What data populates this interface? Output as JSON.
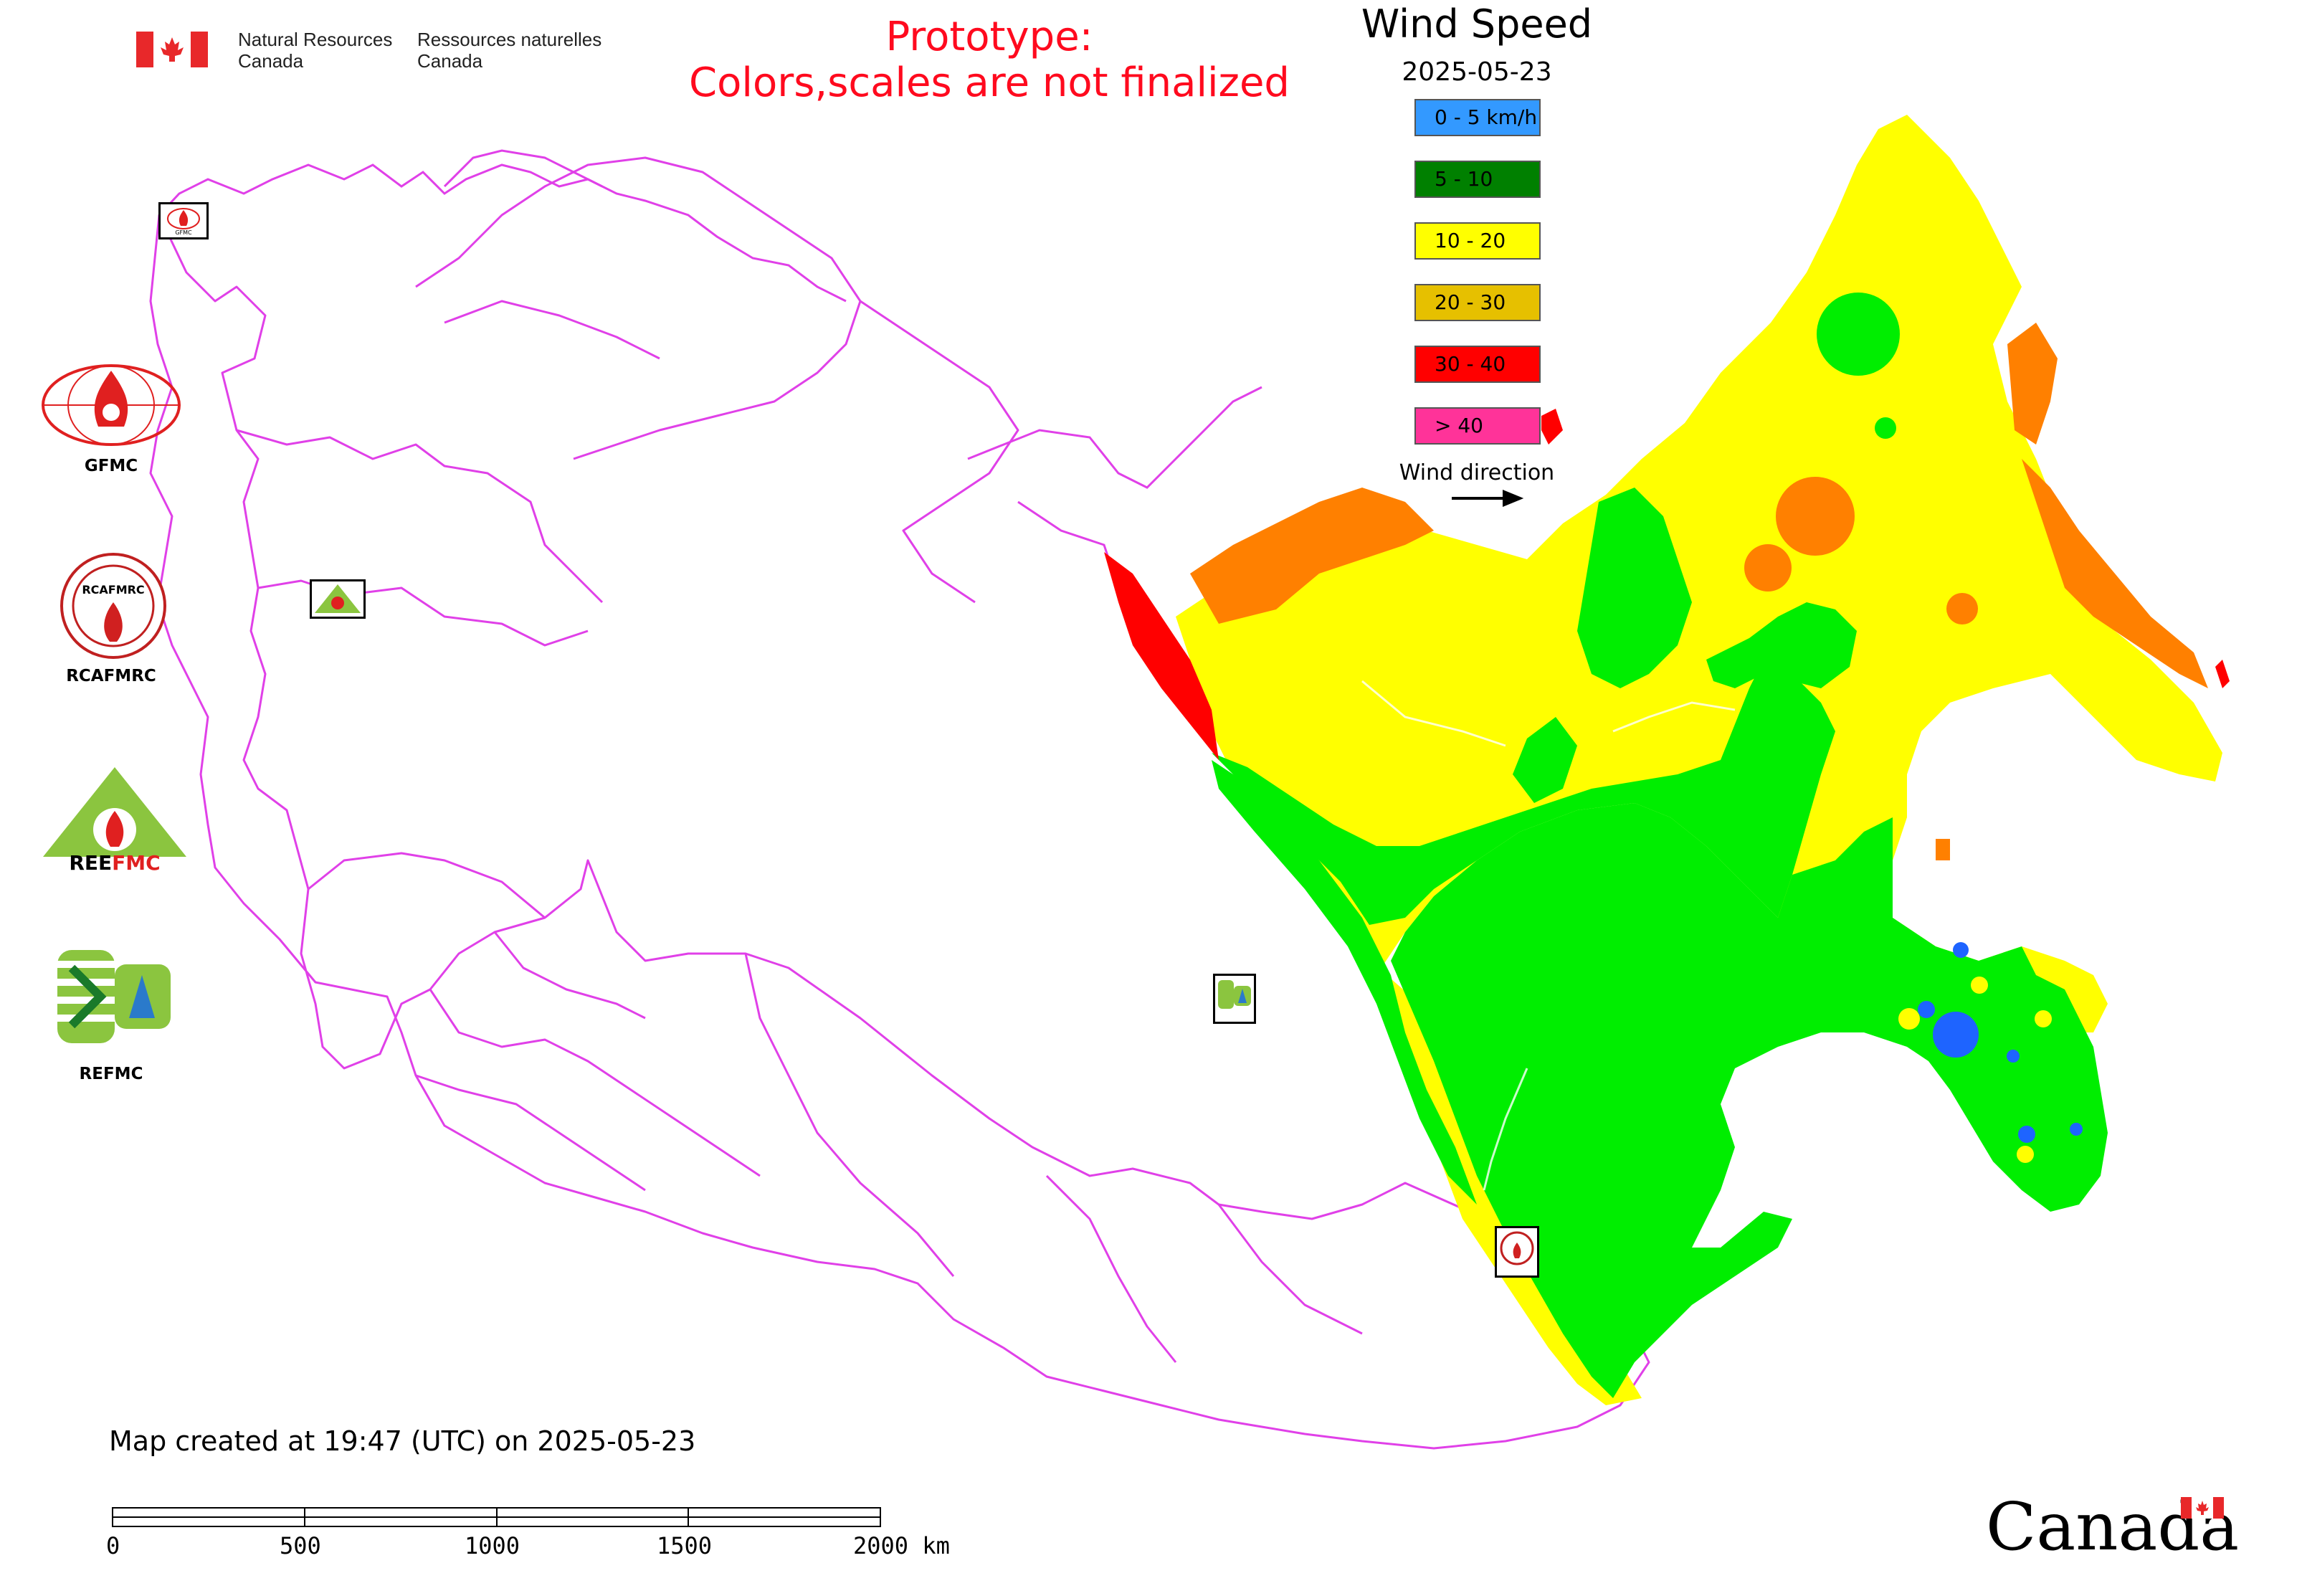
{
  "header": {
    "agency_en_line1": "Natural Resources",
    "agency_en_line2": "Canada",
    "agency_fr_line1": "Ressources naturelles",
    "agency_fr_line2": "Canada",
    "prototype_line1": "Prototype:",
    "prototype_line2": "Colors,scales are not finalized"
  },
  "legend": {
    "title": "Wind Speed",
    "date": "2025-05-23",
    "items": [
      {
        "label": "0 - 5 km/h",
        "color": "#3399ff"
      },
      {
        "label": "5 - 10",
        "color": "#008000"
      },
      {
        "label": "10 - 20",
        "color": "#ffff00"
      },
      {
        "label": "20 - 30",
        "color": "#e6c000"
      },
      {
        "label": "30 - 40",
        "color": "#ff0000"
      },
      {
        "label": "> 40",
        "color": "#ff3399"
      }
    ],
    "wind_direction_label": "Wind direction"
  },
  "organizations": [
    {
      "label": "GFMC",
      "icon": "gfmc-logo-icon"
    },
    {
      "label": "RCAFMRC",
      "icon": "rcafmrc-logo-icon"
    },
    {
      "label": "",
      "icon": "reefmc-logo-icon"
    },
    {
      "label": "REFMC",
      "icon": "refmc-logo-icon"
    }
  ],
  "logo_lettering": {
    "rcafmrc": "RCAFMRC",
    "reefmc": "REEFMC",
    "gfmc_small": "GFMC"
  },
  "footer": {
    "created": "Map created at 19:47 (UTC) on 2025-05-23",
    "wordmark": "Canada"
  },
  "scale_bar": {
    "ticks": [
      "0",
      "500",
      "1000",
      "1500",
      "2000 km"
    ]
  },
  "map_colors": {
    "boundary": "#e040e8",
    "green": "#00ee00",
    "yellow": "#ffff00",
    "orange": "#ff8000",
    "red": "#ff0000",
    "blue": "#1e64ff"
  }
}
